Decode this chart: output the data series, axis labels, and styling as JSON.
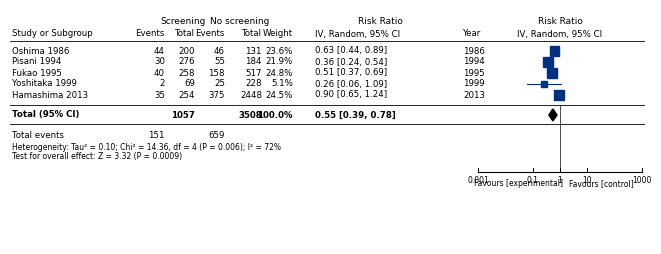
{
  "studies": [
    {
      "name": "Oshima 1986",
      "scr_events": 44,
      "scr_total": 200,
      "noscr_events": 46,
      "noscr_total": 131,
      "weight": "23.6%",
      "rr": 0.63,
      "ci_lo": 0.44,
      "ci_hi": 0.89,
      "year": "1986"
    },
    {
      "name": "Pisani 1994",
      "scr_events": 30,
      "scr_total": 276,
      "noscr_events": 55,
      "noscr_total": 184,
      "weight": "21.9%",
      "rr": 0.36,
      "ci_lo": 0.24,
      "ci_hi": 0.54,
      "year": "1994"
    },
    {
      "name": "Fukao 1995",
      "scr_events": 40,
      "scr_total": 258,
      "noscr_events": 158,
      "noscr_total": 517,
      "weight": "24.8%",
      "rr": 0.51,
      "ci_lo": 0.37,
      "ci_hi": 0.69,
      "year": "1995"
    },
    {
      "name": "Yoshitaka 1999",
      "scr_events": 2,
      "scr_total": 69,
      "noscr_events": 25,
      "noscr_total": 228,
      "weight": "5.1%",
      "rr": 0.26,
      "ci_lo": 0.06,
      "ci_hi": 1.09,
      "year": "1999"
    },
    {
      "name": "Hamashima 2013",
      "scr_events": 35,
      "scr_total": 254,
      "noscr_events": 375,
      "noscr_total": 2448,
      "weight": "24.5%",
      "rr": 0.9,
      "ci_lo": 0.65,
      "ci_hi": 1.24,
      "year": "2013"
    }
  ],
  "total_scr_total": 1057,
  "total_noscr_total": 3508,
  "total_weight": "100.0%",
  "total_rr": 0.55,
  "total_ci_lo": 0.39,
  "total_ci_hi": 0.78,
  "total_scr_events": 151,
  "total_noscr_events": 659,
  "heterogeneity": "Heterogeneity: Tau² = 0.10; Chi² = 14.36, df = 4 (P = 0.006); I² = 72%",
  "overall_effect": "Test for overall effect: Z = 3.32 (P = 0.0009)",
  "axis_ticks": [
    0.001,
    0.1,
    1,
    10,
    1000
  ],
  "axis_tick_labels": [
    "0.001",
    "0.1",
    "1",
    "10",
    "1000"
  ],
  "favours_left": "Favours [experimental]",
  "favours_right": "Favours [control]",
  "blue_color": "#003080",
  "bg_color": "#ffffff",
  "fs_title": 6.5,
  "fs_body": 6.2,
  "fs_small": 5.5
}
